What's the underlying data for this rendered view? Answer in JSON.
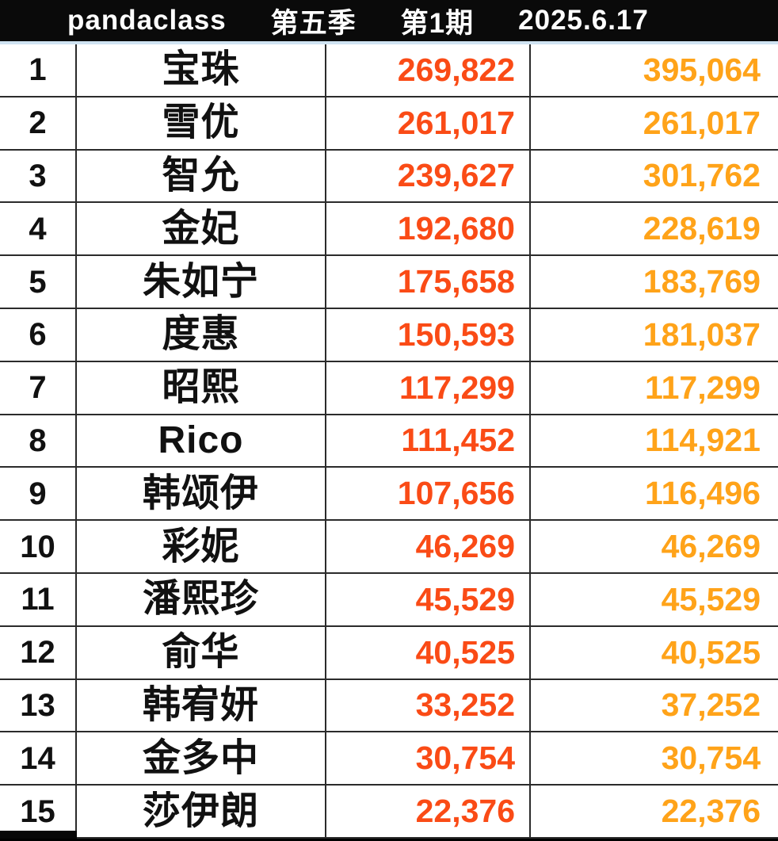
{
  "header": {
    "brand": "pandaclass",
    "season": "第五季",
    "episode": "第1期",
    "date": "2025.6.17"
  },
  "colors": {
    "header_bg": "#0a0a0a",
    "header_text": "#ffffff",
    "accent_line": "#cfe3f2",
    "border": "#2b2b2b",
    "rank_text": "#111111",
    "name_text": "#111111",
    "value1_color": "#fa4b16",
    "value2_color": "#ffa319",
    "row_bg": "#ffffff"
  },
  "table": {
    "rows": [
      {
        "rank": "1",
        "name": "宝珠",
        "value1": "269,822",
        "value2": "395,064"
      },
      {
        "rank": "2",
        "name": "雪优",
        "value1": "261,017",
        "value2": "261,017"
      },
      {
        "rank": "3",
        "name": "智允",
        "value1": "239,627",
        "value2": "301,762"
      },
      {
        "rank": "4",
        "name": "金妃",
        "value1": "192,680",
        "value2": "228,619"
      },
      {
        "rank": "5",
        "name": "朱如宁",
        "value1": "175,658",
        "value2": "183,769"
      },
      {
        "rank": "6",
        "name": "度惠",
        "value1": "150,593",
        "value2": "181,037"
      },
      {
        "rank": "7",
        "name": "昭熙",
        "value1": "117,299",
        "value2": "117,299"
      },
      {
        "rank": "8",
        "name": "Rico",
        "value1": "111,452",
        "value2": "114,921"
      },
      {
        "rank": "9",
        "name": "韩颂伊",
        "value1": "107,656",
        "value2": "116,496"
      },
      {
        "rank": "10",
        "name": "彩妮",
        "value1": "46,269",
        "value2": "46,269"
      },
      {
        "rank": "11",
        "name": "潘熙珍",
        "value1": "45,529",
        "value2": "45,529"
      },
      {
        "rank": "12",
        "name": "俞华",
        "value1": "40,525",
        "value2": "40,525"
      },
      {
        "rank": "13",
        "name": "韩宥妍",
        "value1": "33,252",
        "value2": "37,252"
      },
      {
        "rank": "14",
        "name": "金多中",
        "value1": "30,754",
        "value2": "30,754"
      },
      {
        "rank": "15",
        "name": "莎伊朗",
        "value1": "22,376",
        "value2": "22,376"
      }
    ]
  },
  "chart_data": {
    "type": "table",
    "title": "pandaclass 第五季 第1期 2025.6.17",
    "columns": [
      "rank",
      "name",
      "score_current",
      "score_total"
    ],
    "rows": [
      [
        1,
        "宝珠",
        269822,
        395064
      ],
      [
        2,
        "雪优",
        261017,
        261017
      ],
      [
        3,
        "智允",
        239627,
        301762
      ],
      [
        4,
        "金妃",
        192680,
        228619
      ],
      [
        5,
        "朱如宁",
        175658,
        183769
      ],
      [
        6,
        "度惠",
        150593,
        181037
      ],
      [
        7,
        "昭熙",
        117299,
        117299
      ],
      [
        8,
        "Rico",
        111452,
        114921
      ],
      [
        9,
        "韩颂伊",
        107656,
        116496
      ],
      [
        10,
        "彩妮",
        46269,
        46269
      ],
      [
        11,
        "潘熙珍",
        45529,
        45529
      ],
      [
        12,
        "俞华",
        40525,
        40525
      ],
      [
        13,
        "韩宥妍",
        33252,
        37252
      ],
      [
        14,
        "金多中",
        30754,
        30754
      ],
      [
        15,
        "莎伊朗",
        22376,
        22376
      ]
    ],
    "layout": {
      "grid": true,
      "score_current_color": "#fa4b16",
      "score_total_color": "#ffa319",
      "header_style": "black-bar-white-text"
    }
  }
}
